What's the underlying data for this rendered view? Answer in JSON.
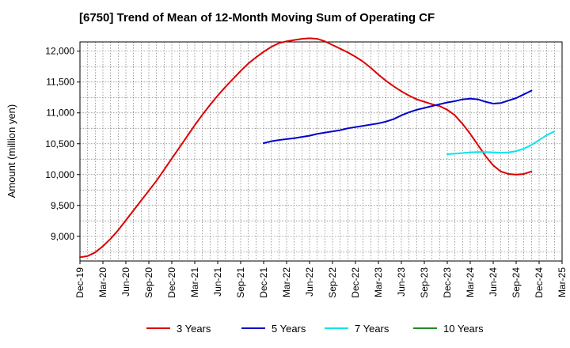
{
  "chart_data": {
    "type": "line",
    "title": "[6750]  Trend of Mean of 12-Month Moving Sum of Operating CF",
    "xlabel": "",
    "ylabel": "Amount (million yen)",
    "ylim": [
      8600,
      12150
    ],
    "yticks": [
      9000,
      9500,
      10000,
      10500,
      11000,
      11500,
      12000
    ],
    "ytick_labels": [
      "9,000",
      "9,500",
      "10,000",
      "10,500",
      "11,000",
      "11,500",
      "12,000"
    ],
    "x_start": "2019-12",
    "x_end": "2025-03",
    "xtick_labels": [
      "Dec-19",
      "Mar-20",
      "Jun-20",
      "Sep-20",
      "Dec-20",
      "Mar-21",
      "Jun-21",
      "Sep-21",
      "Dec-21",
      "Mar-22",
      "Jun-22",
      "Sep-22",
      "Dec-22",
      "Mar-23",
      "Jun-23",
      "Sep-23",
      "Dec-23",
      "Mar-24",
      "Jun-24",
      "Sep-24",
      "Dec-24",
      "Mar-25"
    ],
    "grid": true,
    "legend_position": "bottom",
    "series": [
      {
        "name": "3 Years",
        "color": "#dd0000",
        "start_month_index": 0,
        "values": [
          8660,
          8680,
          8740,
          8840,
          8960,
          9100,
          9260,
          9420,
          9580,
          9740,
          9900,
          10080,
          10260,
          10440,
          10620,
          10800,
          10970,
          11130,
          11280,
          11420,
          11550,
          11680,
          11800,
          11900,
          11990,
          12070,
          12130,
          12160,
          12180,
          12200,
          12210,
          12200,
          12160,
          12100,
          12040,
          11980,
          11910,
          11830,
          11730,
          11620,
          11520,
          11430,
          11350,
          11280,
          11220,
          11180,
          11140,
          11110,
          11050,
          10960,
          10820,
          10660,
          10480,
          10300,
          10150,
          10050,
          10010,
          10000,
          10010,
          10050
        ]
      },
      {
        "name": "5 Years",
        "color": "#0000cc",
        "start_month_index": 24,
        "values": [
          10510,
          10540,
          10560,
          10575,
          10590,
          10610,
          10630,
          10660,
          10680,
          10700,
          10720,
          10750,
          10770,
          10790,
          10810,
          10830,
          10860,
          10900,
          10960,
          11010,
          11050,
          11080,
          11110,
          11140,
          11170,
          11190,
          11220,
          11230,
          11220,
          11180,
          11150,
          11160,
          11200,
          11240,
          11300,
          11360
        ]
      },
      {
        "name": "7 Years",
        "color": "#00e5ee",
        "start_month_index": 48,
        "values": [
          10330,
          10340,
          10350,
          10360,
          10365,
          10365,
          10360,
          10355,
          10360,
          10380,
          10420,
          10480,
          10560,
          10640,
          10700
        ]
      },
      {
        "name": "10 Years",
        "color": "#228b22",
        "start_month_index": null,
        "values": []
      }
    ]
  }
}
